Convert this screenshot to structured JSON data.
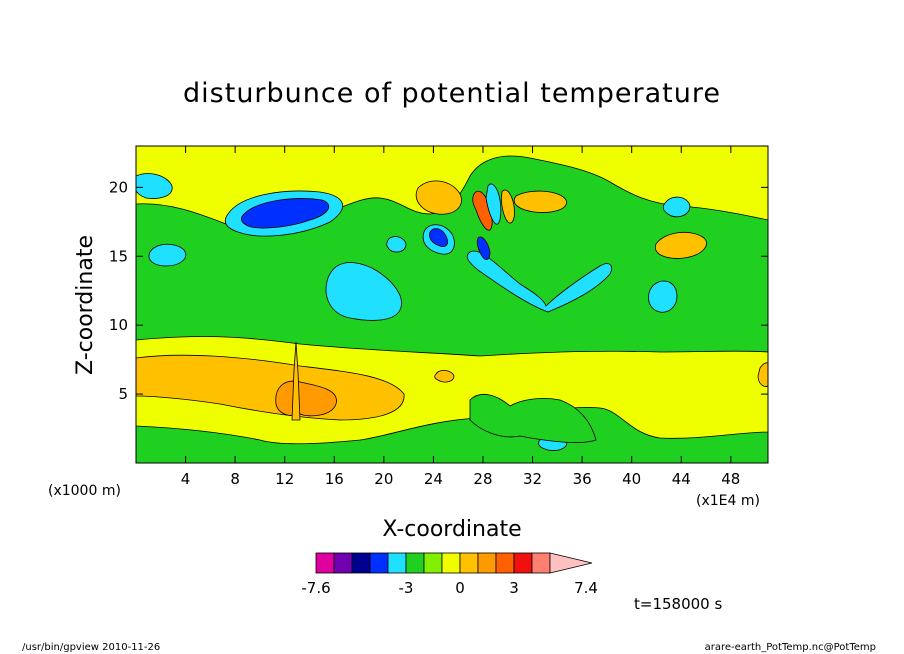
{
  "chart_data": {
    "type": "heatmap",
    "title": "disturbunce of potential temperature",
    "xlabel": "X-coordinate",
    "ylabel": "Z-coordinate",
    "x_unit": "(x1E4 m)",
    "y_unit": "(x1000 m)",
    "xlim": [
      0,
      51
    ],
    "ylim": [
      0,
      23
    ],
    "xticks": [
      4,
      8,
      12,
      16,
      20,
      24,
      28,
      32,
      36,
      40,
      44,
      48
    ],
    "yticks": [
      5,
      10,
      15,
      20
    ],
    "colorbar": {
      "colors": [
        "#e000a0",
        "#7000b0",
        "#000090",
        "#0030ff",
        "#20e0ff",
        "#20d020",
        "#80f000",
        "#f0ff00",
        "#ffc000",
        "#ff9a00",
        "#ff6000",
        "#f01010",
        "#ff8070",
        "#ffc0c0"
      ],
      "labels": [
        "-7.6",
        "-3",
        "0",
        "3",
        "7.4"
      ]
    },
    "time_label": "t=158000 s"
  },
  "footer": {
    "left": "/usr/bin/gpview   2010-11-26",
    "right": "arare-earth_PotTemp.nc@PotTemp"
  }
}
